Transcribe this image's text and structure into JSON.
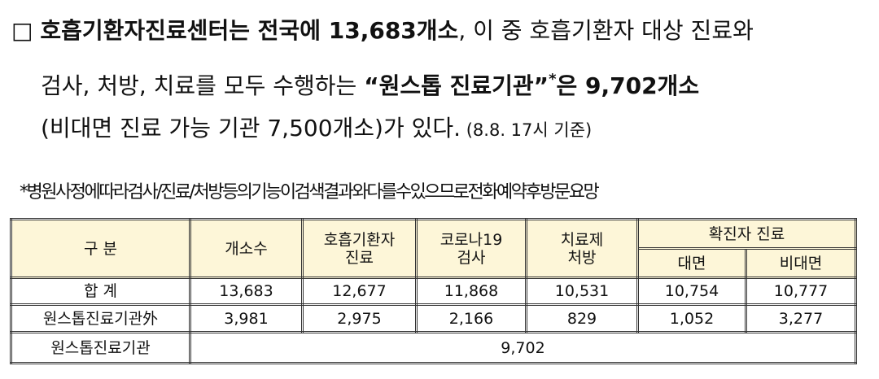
{
  "paragraph": {
    "lines": [
      [
        {
          "text": "□ "
        },
        {
          "text": "호흡기환자진료센터는 전국에 13,683개소",
          "bold": true
        },
        {
          "text": ", 이 중 호흡기환자 대상 진료와"
        }
      ],
      [
        {
          "text": "검사, 처방, 치료를 모두 수행하는 "
        },
        {
          "text": "“원스톱 진료기관”",
          "bold": true
        },
        {
          "text": "*",
          "bold": true,
          "sup": true
        },
        {
          "text": "은 9,702개소",
          "bold": true
        }
      ],
      [
        {
          "text": "(비대면 진료 가능 기관 7,500개소)가 있다."
        },
        {
          "text": " (8.8. 17시 기준)",
          "small": true
        }
      ]
    ]
  },
  "note": "*병원사정에따라검사/진료/처방등의기능이검색결과와다를수있으므로전화예약후방문요망",
  "table": {
    "columns": [
      [
        "구 분"
      ],
      [
        "개소수"
      ],
      [
        "호흡기환자",
        "진료"
      ],
      [
        "코로나19",
        "검사"
      ],
      [
        "치료제",
        "처방"
      ]
    ],
    "group": "확진자 진료",
    "subcolumns": [
      "대면",
      "비대면"
    ],
    "rows": [
      [
        "합 계",
        "13,683",
        "12,677",
        "11,868",
        "10,531",
        "10,754",
        "10,777"
      ],
      [
        "원스톱진료기관外",
        "3,981",
        "2,975",
        "2,166",
        "829",
        "1,052",
        "3,277"
      ]
    ],
    "total_row": [
      "원스톱진료기관",
      "9,702"
    ]
  }
}
